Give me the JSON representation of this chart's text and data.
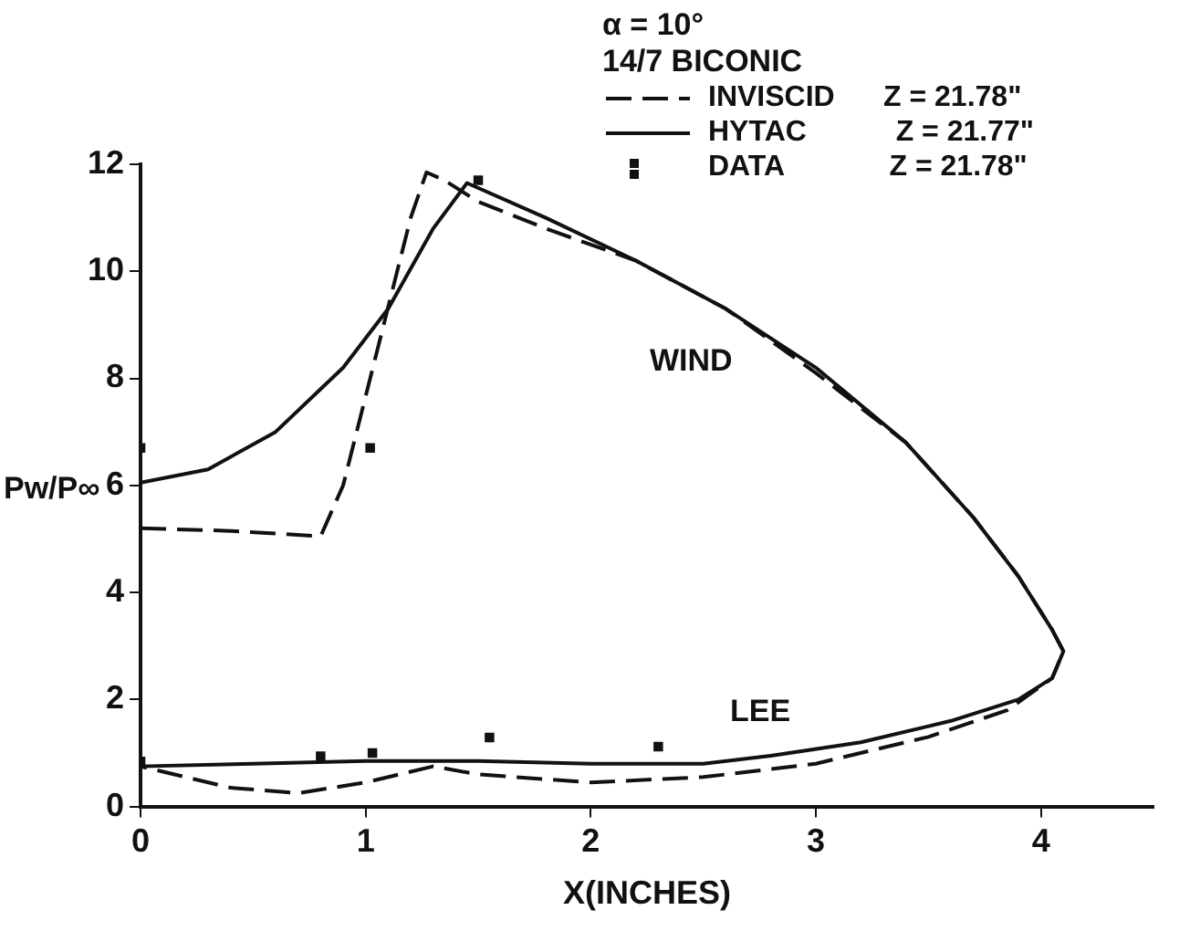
{
  "chart_data": {
    "type": "line",
    "title": "α = 10°",
    "legend_title": "14/7 BICONIC",
    "xlabel": "X(INCHES)",
    "ylabel": "Pw/P∞",
    "xlim": [
      0,
      4.5
    ],
    "xticks": [
      0,
      1,
      2,
      3,
      4
    ],
    "ylim": [
      0,
      12
    ],
    "yticks": [
      0,
      2,
      4,
      6,
      8,
      10,
      12
    ],
    "grid": false,
    "legend": "top right",
    "series": [
      {
        "name": "INVISCID      Z = 21.78\"",
        "type": "line",
        "line_style": "dashed",
        "marker": "none",
        "color": "#111111",
        "x": [
          0,
          0.4,
          0.8,
          0.9,
          1.05,
          1.2,
          1.27,
          1.35,
          1.5,
          1.8,
          2.2,
          2.6,
          3.0,
          3.4,
          3.7,
          3.9,
          4.05,
          4.1,
          4.05,
          3.85,
          3.5,
          3.0,
          2.5,
          2.0,
          1.5,
          1.3,
          1.0,
          0.7,
          0.4,
          0
        ],
        "values": [
          5.2,
          5.15,
          5.05,
          6.0,
          8.5,
          11.0,
          11.85,
          11.7,
          11.3,
          10.8,
          10.2,
          9.3,
          8.1,
          6.8,
          5.4,
          4.3,
          3.3,
          2.9,
          2.4,
          1.8,
          1.3,
          0.8,
          0.55,
          0.45,
          0.6,
          0.75,
          0.45,
          0.25,
          0.35,
          0.75
        ]
      },
      {
        "name": "HYTAC           Z = 21.77\"",
        "type": "line",
        "line_style": "solid",
        "marker": "none",
        "color": "#111111",
        "x": [
          0,
          0.3,
          0.6,
          0.9,
          1.1,
          1.3,
          1.45,
          1.8,
          2.2,
          2.6,
          3.0,
          3.4,
          3.7,
          3.9,
          4.05,
          4.1,
          4.05,
          3.9,
          3.6,
          3.2,
          2.8,
          2.5,
          2.0,
          1.5,
          1.0,
          0.5,
          0
        ],
        "values": [
          6.05,
          6.3,
          7.0,
          8.2,
          9.3,
          10.8,
          11.65,
          11.0,
          10.2,
          9.3,
          8.2,
          6.8,
          5.4,
          4.3,
          3.3,
          2.9,
          2.4,
          2.0,
          1.6,
          1.2,
          0.95,
          0.8,
          0.8,
          0.85,
          0.85,
          0.8,
          0.75
        ]
      },
      {
        "name": "DATA             Z = 21.78\"",
        "type": "scatter",
        "marker": "square",
        "color": "#111111",
        "x": [
          0,
          1.02,
          1.5,
          0,
          0.8,
          1.03,
          1.55,
          2.3
        ],
        "values": [
          6.7,
          6.7,
          11.7,
          0.84,
          0.94,
          1.0,
          1.29,
          1.12
        ]
      }
    ],
    "annotations": [
      "WIND",
      "LEE"
    ]
  }
}
